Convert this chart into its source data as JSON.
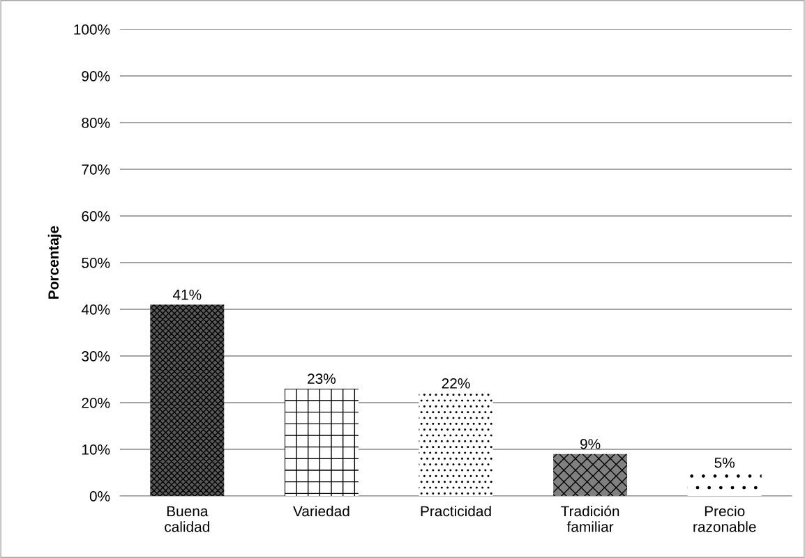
{
  "chart_data": {
    "type": "bar",
    "ylabel": "Porcentaje",
    "categories": [
      "Buena\ncalidad",
      "Variedad",
      "Practicidad",
      "Tradición\nfamiliar",
      "Precio\nrazonable"
    ],
    "values": [
      41,
      23,
      22,
      9,
      5
    ],
    "value_labels": [
      "41%",
      "23%",
      "22%",
      "9%",
      "5%"
    ],
    "colors": [
      "#595959",
      "#ffffff",
      "#ffffff",
      "#808080",
      "#ffffff"
    ],
    "ylim": [
      0,
      100
    ],
    "yticks": [
      {
        "value": 0,
        "label": "0%"
      },
      {
        "value": 10,
        "label": "10%"
      },
      {
        "value": 20,
        "label": "20%"
      },
      {
        "value": 30,
        "label": "30%"
      },
      {
        "value": 40,
        "label": "40%"
      },
      {
        "value": 50,
        "label": "50%"
      },
      {
        "value": 60,
        "label": "60%"
      },
      {
        "value": 70,
        "label": "70%"
      },
      {
        "value": 80,
        "label": "80%"
      },
      {
        "value": 90,
        "label": "90%"
      },
      {
        "value": 100,
        "label": "100%"
      }
    ],
    "grid": "y",
    "legend": false
  }
}
